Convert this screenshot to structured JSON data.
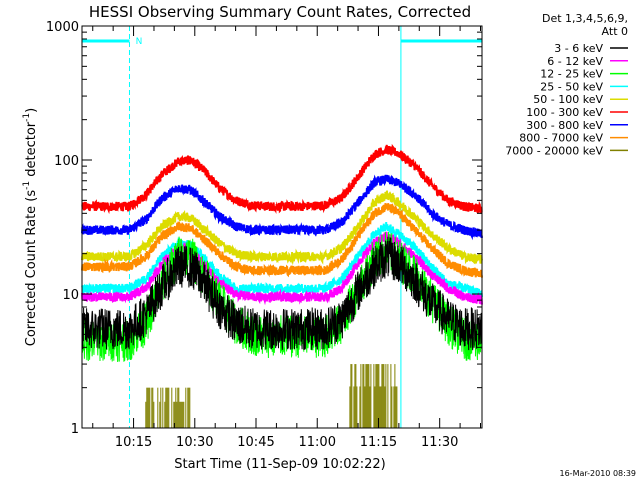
{
  "chart_data": {
    "type": "line",
    "title": "HESSI Observing Summary Count Rates, Corrected",
    "xlabel": "Start Time (11-Sep-09 10:02:22)",
    "ylabel_main": "Corrected Count Rate (s",
    "ylabel_sup1": "-1",
    "ylabel_mid": " detector",
    "ylabel_sup2": "-1",
    "ylabel_end": ")",
    "ylim": [
      1,
      1000
    ],
    "yscale": "log",
    "y_ticks": [
      {
        "value": 1,
        "label": "1"
      },
      {
        "value": 10,
        "label": "10"
      },
      {
        "value": 100,
        "label": "100"
      },
      {
        "value": 1000,
        "label": "1000"
      }
    ],
    "xlim": [
      "10:02:22",
      "11:40:22"
    ],
    "x_ticks": [
      {
        "value": "10:15",
        "label": "10:15"
      },
      {
        "value": "10:30",
        "label": "10:30"
      },
      {
        "value": "10:45",
        "label": "10:45"
      },
      {
        "value": "11:00",
        "label": "11:00"
      },
      {
        "value": "11:15",
        "label": "11:15"
      },
      {
        "value": "11:30",
        "label": "11:30"
      }
    ],
    "legend": {
      "placement": "right",
      "header_line1": "Det 1,3,4,5,6,9,",
      "header_line2": "Att 0",
      "entries": [
        {
          "label": "3 - 6 keV",
          "color": "#000000"
        },
        {
          "label": "6 - 12 keV",
          "color": "#ff00ff"
        },
        {
          "label": "12 - 25 keV",
          "color": "#00ff00"
        },
        {
          "label": "25 - 50 keV",
          "color": "#00ffff"
        },
        {
          "label": "50 - 100 keV",
          "color": "#dcdc00"
        },
        {
          "label": "100 - 300 keV",
          "color": "#ff0000"
        },
        {
          "label": "300 - 800 keV",
          "color": "#0000ff"
        },
        {
          "label": "800 - 7000 keV",
          "color": "#ff8c00"
        },
        {
          "label": "7000 - 20000 keV",
          "color": "#808000"
        }
      ]
    },
    "x_time_points": [
      "10:02:22",
      "10:14:00",
      "10:18:00",
      "10:22:00",
      "10:26:00",
      "10:29:00",
      "10:32:00",
      "10:36:00",
      "10:40:00",
      "10:44:00",
      "10:48:00",
      "10:56:00",
      "11:02:00",
      "11:06:00",
      "11:10:00",
      "11:14:00",
      "11:17:00",
      "11:20:00",
      "11:24:00",
      "11:28:00",
      "11:32:00",
      "11:36:00",
      "11:40:22"
    ],
    "series": [
      {
        "name": "100 - 300 keV",
        "color": "#ff0000",
        "values": [
          45,
          45,
          55,
          78,
          98,
          100,
          85,
          62,
          50,
          46,
          45,
          45,
          46,
          52,
          75,
          110,
          120,
          112,
          90,
          65,
          50,
          45,
          43
        ]
      },
      {
        "name": "300 - 800 keV",
        "color": "#0000ff",
        "values": [
          30,
          30,
          36,
          52,
          62,
          60,
          50,
          38,
          32,
          30,
          30,
          30,
          30,
          34,
          48,
          68,
          72,
          67,
          55,
          40,
          33,
          30,
          28
        ]
      },
      {
        "name": "50 - 100 keV",
        "color": "#dcdc00",
        "values": [
          19,
          19,
          23,
          32,
          38,
          37,
          31,
          24,
          20,
          19,
          19,
          19,
          19,
          22,
          32,
          48,
          55,
          48,
          37,
          28,
          22,
          19,
          18
        ]
      },
      {
        "name": "800 - 7000 keV",
        "color": "#ff8c00",
        "values": [
          16,
          16,
          19,
          27,
          32,
          31,
          26,
          20,
          16,
          15,
          15,
          15,
          15,
          18,
          27,
          40,
          45,
          40,
          30,
          22,
          17,
          15,
          14
        ]
      },
      {
        "name": "25 - 50 keV",
        "color": "#00ffff",
        "values": [
          11,
          11,
          13,
          19,
          24,
          23,
          19,
          14,
          11,
          11,
          11,
          11,
          11,
          13,
          19,
          28,
          32,
          28,
          22,
          16,
          12,
          11,
          10
        ]
      },
      {
        "name": "6 - 12 keV",
        "color": "#ff00ff",
        "values": [
          9.5,
          9.5,
          11,
          17,
          22,
          21,
          17,
          12,
          10,
          9.5,
          9.5,
          9.5,
          9.5,
          11,
          17,
          24,
          27,
          24,
          19,
          14,
          11,
          9.5,
          9
        ]
      },
      {
        "name": "12 - 25 keV",
        "color": "#00ff00",
        "values": [
          4.5,
          4.5,
          6,
          12,
          19,
          19,
          14,
          9,
          6,
          5,
          4.8,
          4.8,
          4.8,
          6,
          11,
          18,
          21,
          18,
          14,
          9,
          6,
          4.6,
          4.5
        ]
      },
      {
        "name": "3 - 6 keV",
        "color": "#000000",
        "values": [
          5.5,
          5.5,
          7,
          11.5,
          16,
          16,
          12.5,
          8,
          6,
          5.5,
          5.5,
          5.5,
          5.5,
          6.5,
          10.5,
          16,
          19,
          17,
          12.5,
          8.5,
          6.5,
          5.5,
          5.5
        ]
      }
    ],
    "attenuator_bands": [
      {
        "start": "10:18:00",
        "end": "10:29:00",
        "y_top": 2
      },
      {
        "start": "11:08:00",
        "end": "11:20:00",
        "y_top": 3
      }
    ],
    "flags": {
      "color": "#00ffff",
      "top_bars": [
        {
          "start": "10:02:22",
          "end": "10:14:00"
        },
        {
          "start": "11:20:30",
          "end": "11:40:22"
        }
      ],
      "dashed_lines": [
        "10:14:00",
        "11:40:22"
      ],
      "solid_line": "11:20:30",
      "label": "N",
      "label_at": "10:15:00"
    }
  },
  "footer": {
    "date": "16-Mar-2010 08:39"
  }
}
